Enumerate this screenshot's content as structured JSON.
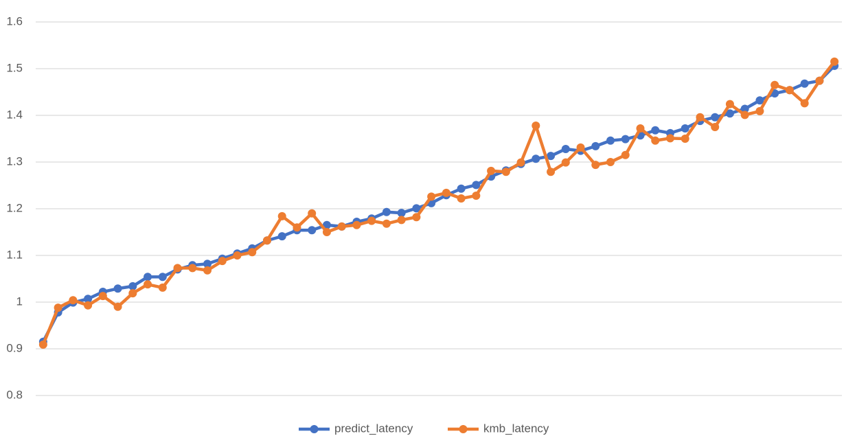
{
  "chart_data": {
    "type": "line",
    "categories": [
      null,
      null,
      null,
      null,
      null,
      null,
      null,
      null,
      null,
      null,
      null,
      null,
      null,
      null,
      null,
      null,
      null,
      null,
      null,
      null,
      null,
      null,
      null,
      null,
      null,
      null,
      null,
      null,
      null,
      null,
      null,
      null,
      null,
      null,
      null,
      null,
      null,
      null,
      null,
      null,
      null,
      null,
      null,
      null,
      null,
      null,
      null,
      null,
      null,
      null,
      null,
      null,
      null,
      null
    ],
    "series": [
      {
        "name": "predict_latency",
        "color": "#4472c4",
        "values": [
          0.915,
          0.978,
          0.999,
          1.007,
          1.022,
          1.029,
          1.034,
          1.054,
          1.054,
          1.07,
          1.079,
          1.082,
          1.093,
          1.104,
          1.115,
          1.132,
          1.141,
          1.154,
          1.154,
          1.165,
          1.162,
          1.172,
          1.179,
          1.193,
          1.191,
          1.201,
          1.212,
          1.229,
          1.243,
          1.251,
          1.269,
          1.282,
          1.296,
          1.307,
          1.313,
          1.328,
          1.324,
          1.334,
          1.346,
          1.349,
          1.357,
          1.368,
          1.362,
          1.372,
          1.388,
          1.396,
          1.404,
          1.414,
          1.432,
          1.447,
          1.454,
          1.468,
          1.474,
          1.506
        ]
      },
      {
        "name": "kmb_latency",
        "color": "#ed7d31",
        "values": [
          0.909,
          0.988,
          1.004,
          0.993,
          1.013,
          0.99,
          1.019,
          1.038,
          1.031,
          1.073,
          1.073,
          1.068,
          1.088,
          1.1,
          1.107,
          1.132,
          1.184,
          1.16,
          1.19,
          1.15,
          1.162,
          1.165,
          1.174,
          1.168,
          1.176,
          1.182,
          1.226,
          1.234,
          1.222,
          1.228,
          1.281,
          1.279,
          1.299,
          1.378,
          1.279,
          1.299,
          1.331,
          1.294,
          1.3,
          1.315,
          1.372,
          1.346,
          1.351,
          1.35,
          1.396,
          1.375,
          1.424,
          1.401,
          1.409,
          1.465,
          1.454,
          1.426,
          1.474,
          1.515
        ]
      }
    ],
    "ylim": [
      0.8,
      1.6
    ],
    "yticks": [
      0.8,
      0.9,
      1,
      1.1,
      1.2,
      1.3,
      1.4,
      1.5,
      1.6
    ],
    "grid": true,
    "legend": "bottom"
  }
}
